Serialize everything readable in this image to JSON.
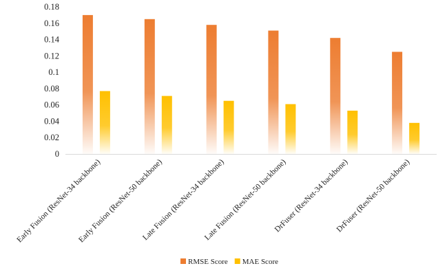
{
  "chart_data": {
    "type": "bar",
    "title": "",
    "xlabel": "",
    "ylabel": "",
    "categories": [
      "Early Fusion (ResNet-34 backbone)",
      "Early Fusion (ResNet-50 backbone)",
      "Late Fusion (ResNet-34 backbone)",
      "Late Fusion (ResNet-50 backbone)",
      "DrFuser (ResNet-34 backbone)",
      "DrFuser (ResNet-50 backbone)"
    ],
    "series": [
      {
        "name": "RMSE Score",
        "values": [
          0.17,
          0.165,
          0.158,
          0.151,
          0.142,
          0.125
        ],
        "color": "#ED7D31"
      },
      {
        "name": "MAE Score",
        "values": [
          0.077,
          0.071,
          0.065,
          0.061,
          0.053,
          0.038
        ],
        "color": "#FFC000"
      }
    ],
    "ylim": [
      0,
      0.18
    ],
    "yticks": [
      0,
      0.02,
      0.04,
      0.06,
      0.08,
      0.1,
      0.12,
      0.14,
      0.16,
      0.18
    ],
    "ytick_labels": [
      "0",
      "0.02",
      "0.04",
      "0.06",
      "0.08",
      "0.1",
      "0.12",
      "0.14",
      "0.16",
      "0.18"
    ],
    "grid": false,
    "legend_position": "bottom"
  }
}
